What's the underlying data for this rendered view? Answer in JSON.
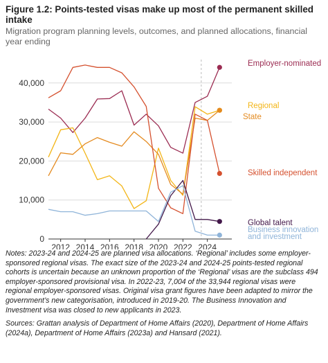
{
  "title": "Figure 1.2: Points-tested visas make up most of the permanent skilled intake",
  "subtitle": "Migration program planning levels, outcomes, and planned allocations, financial year ending",
  "notes": "Notes: 2023-24 and 2024-25 are planned visa allocations. ‘Regional’ includes some employer-sponsored regional visas. The exact size of the 2023-24 and 2024-25 points-tested regional cohorts is uncertain because an unknown proportion of the ‘Regional’ visas are the subclass 494 employer-sponsored provisional visa. In 2022-23, 7,004 of the 33,944 regional visas were regional employer-sponsored visas. Original visa grant figures have been adapted to mirror the government’s new categorisation, introduced in 2019-20. The Business Innovation and Investment visa was closed to new applicants in 2023.",
  "sources": "Sources: Grattan analysis of Department of Home Affairs (2020), Department of Home Affairs (2024a), Department of Home Affairs (2023a) and Hansard (2021).",
  "chart_data": {
    "type": "line",
    "x_ticks": [
      2012,
      2014,
      2016,
      2018,
      2020,
      2022,
      2024
    ],
    "y_ticks": [
      0,
      10000,
      20000,
      30000,
      40000
    ],
    "y_tick_labels": [
      "0",
      "10,000",
      "20,000",
      "30,000",
      "40,000"
    ],
    "xlim": [
      2011,
      2026
    ],
    "ylim": [
      0,
      46000
    ],
    "series": [
      {
        "key": "emp",
        "color": "#9b2c52",
        "labels": [
          "Employer-nominated"
        ],
        "points": [
          [
            2011,
            33300
          ],
          [
            2012,
            31000
          ],
          [
            2013,
            27300
          ],
          [
            2014,
            31000
          ],
          [
            2015,
            35900
          ],
          [
            2016,
            36000
          ],
          [
            2017,
            38000
          ],
          [
            2018,
            29200
          ],
          [
            2019,
            32000
          ],
          [
            2020,
            29000
          ],
          [
            2021,
            23500
          ],
          [
            2022,
            22000
          ],
          [
            2023,
            35000
          ],
          [
            2024,
            36600
          ],
          [
            2025,
            44000
          ]
        ]
      },
      {
        "key": "reg",
        "color": "#f3b516",
        "labels": [
          "Regional"
        ],
        "points": [
          [
            2011,
            21000
          ],
          [
            2012,
            28000
          ],
          [
            2013,
            28500
          ],
          [
            2014,
            22000
          ],
          [
            2015,
            15200
          ],
          [
            2016,
            16200
          ],
          [
            2017,
            13600
          ],
          [
            2018,
            7800
          ],
          [
            2019,
            9800
          ],
          [
            2020,
            23300
          ],
          [
            2021,
            15000
          ],
          [
            2022,
            11200
          ],
          [
            2023,
            33900
          ],
          [
            2024,
            32000
          ],
          [
            2025,
            33000
          ]
        ]
      },
      {
        "key": "state",
        "color": "#e48a1f",
        "labels": [
          "State"
        ],
        "points": [
          [
            2011,
            16200
          ],
          [
            2012,
            22100
          ],
          [
            2013,
            21700
          ],
          [
            2014,
            24400
          ],
          [
            2015,
            26000
          ],
          [
            2016,
            24800
          ],
          [
            2017,
            23800
          ],
          [
            2018,
            27500
          ],
          [
            2019,
            25000
          ],
          [
            2020,
            21700
          ],
          [
            2021,
            14000
          ],
          [
            2022,
            11500
          ],
          [
            2023,
            31000
          ],
          [
            2024,
            30400
          ],
          [
            2025,
            33000
          ]
        ]
      },
      {
        "key": "skilled",
        "color": "#d5512f",
        "labels": [
          "Skilled independent"
        ],
        "points": [
          [
            2011,
            36200
          ],
          [
            2012,
            38000
          ],
          [
            2013,
            44000
          ],
          [
            2014,
            44600
          ],
          [
            2015,
            44000
          ],
          [
            2016,
            44000
          ],
          [
            2017,
            42600
          ],
          [
            2018,
            39000
          ],
          [
            2019,
            34000
          ],
          [
            2020,
            13000
          ],
          [
            2021,
            8000
          ],
          [
            2022,
            6500
          ],
          [
            2023,
            32000
          ],
          [
            2024,
            30400
          ],
          [
            2025,
            16800
          ]
        ]
      },
      {
        "key": "global",
        "color": "#43184a",
        "labels": [
          "Global talent"
        ],
        "points": [
          [
            2019,
            0
          ],
          [
            2020,
            3800
          ],
          [
            2021,
            11100
          ],
          [
            2022,
            15000
          ],
          [
            2023,
            5000
          ],
          [
            2024,
            5000
          ],
          [
            2025,
            4500
          ]
        ]
      },
      {
        "key": "bii",
        "color": "#8fb4d9",
        "labels": [
          "Business innovation",
          "and investment"
        ],
        "points": [
          [
            2011,
            7600
          ],
          [
            2012,
            7000
          ],
          [
            2013,
            7000
          ],
          [
            2014,
            6100
          ],
          [
            2015,
            6500
          ],
          [
            2016,
            7200
          ],
          [
            2017,
            7200
          ],
          [
            2018,
            7200
          ],
          [
            2019,
            7200
          ],
          [
            2020,
            4500
          ],
          [
            2021,
            12000
          ],
          [
            2022,
            13700
          ],
          [
            2023,
            2000
          ],
          [
            2024,
            1000
          ],
          [
            2025,
            1000
          ]
        ]
      }
    ]
  }
}
